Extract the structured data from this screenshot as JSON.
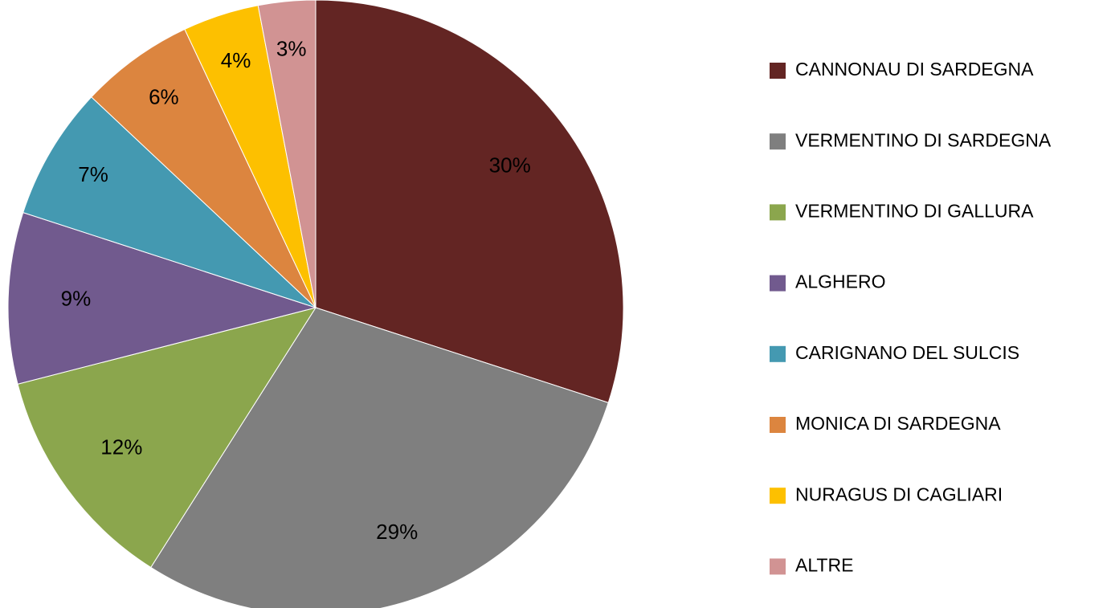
{
  "chart_data": {
    "type": "pie",
    "categories": [
      "CANNONAU DI SARDEGNA",
      "VERMENTINO DI SARDEGNA",
      "VERMENTINO DI GALLURA",
      "ALGHERO",
      "CARIGNANO DEL SULCIS",
      "MONICA DI SARDEGNA",
      "NURAGUS DI CAGLIARI",
      "ALTRE"
    ],
    "values": [
      30,
      29,
      12,
      9,
      7,
      6,
      4,
      3
    ],
    "value_labels": [
      "30%",
      "29%",
      "12%",
      "9%",
      "7%",
      "6%",
      "4%",
      "3%"
    ],
    "colors": [
      "#632523",
      "#7f7f7f",
      "#8ba64d",
      "#715a8e",
      "#4499b1",
      "#dc853f",
      "#fdc000",
      "#d19393"
    ],
    "legend": "right"
  }
}
